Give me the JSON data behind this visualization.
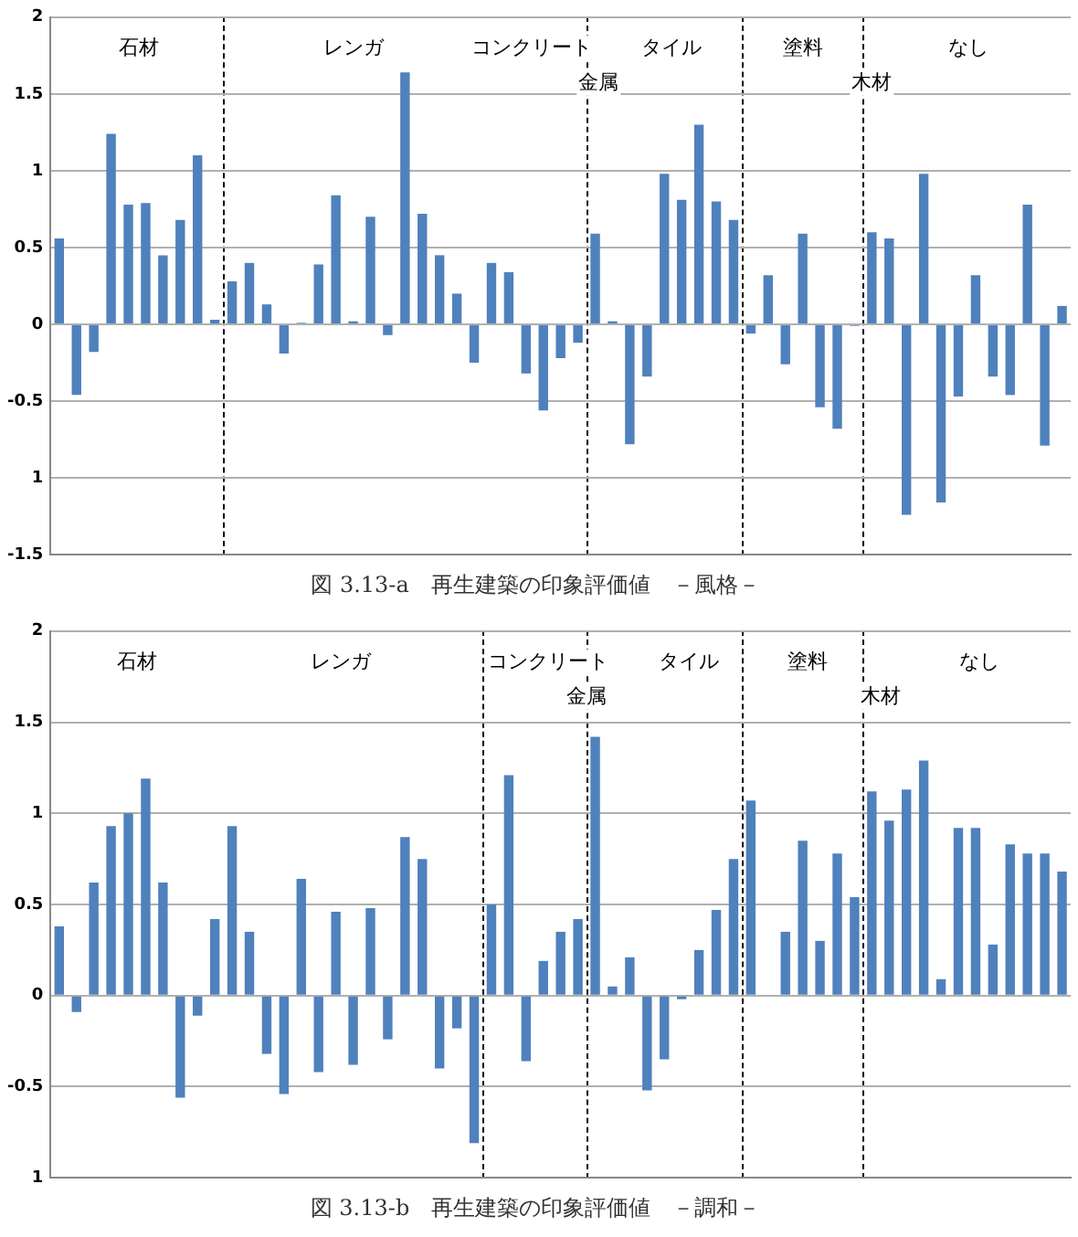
{
  "chart_data": [
    {
      "type": "bar",
      "title": "図 3.13-a　再生建築の印象評価値　－風格－",
      "categories": [
        null,
        null,
        null,
        null,
        null,
        null,
        null,
        null,
        null,
        null,
        null,
        null,
        null,
        null,
        null,
        null,
        null,
        null,
        null,
        null,
        null,
        null,
        null,
        null,
        null,
        null,
        null,
        null,
        null,
        null,
        null,
        null,
        null,
        null,
        null,
        null,
        null,
        null,
        null,
        null,
        null,
        null,
        null,
        null,
        null,
        null,
        null,
        null,
        null,
        null,
        null,
        null,
        null,
        null,
        null,
        null,
        null,
        null,
        null
      ],
      "values": [
        0.56,
        -0.46,
        -0.18,
        1.24,
        0.78,
        0.79,
        0.45,
        0.68,
        1.1,
        0.03,
        0.28,
        0.4,
        0.13,
        -0.19,
        0.01,
        0.39,
        0.84,
        0.02,
        0.7,
        -0.07,
        1.64,
        0.72,
        0.45,
        0.2,
        -0.25,
        0.4,
        0.34,
        -0.32,
        -0.56,
        -0.22,
        -0.12,
        0.59,
        0.02,
        -0.78,
        -0.34,
        0.98,
        0.81,
        1.3,
        0.8,
        0.68,
        -0.06,
        0.32,
        -0.26,
        0.59,
        -0.54,
        -0.68,
        -0.01,
        0.6,
        0.56,
        -1.24,
        0.98,
        -1.16,
        -0.47,
        0.32,
        -0.34,
        -0.46,
        0.78,
        -0.79,
        0.12
      ],
      "color": "#4f81bd",
      "ylim": [
        -1.5,
        2
      ],
      "yticks": [
        -1.5,
        {
          "value": -1,
          "label": "1"
        },
        -0.5,
        0,
        0.5,
        1,
        1.5,
        2
      ],
      "tick_labels": "y",
      "grid": "y",
      "annotations": [
        "石材",
        "レンガ",
        "コンクリート",
        "金属",
        "タイル",
        "塗料",
        "木材",
        "なし"
      ]
    },
    {
      "type": "bar",
      "title": "図 3.13-b　再生建築の印象評価値　－調和－",
      "categories": [
        null,
        null,
        null,
        null,
        null,
        null,
        null,
        null,
        null,
        null,
        null,
        null,
        null,
        null,
        null,
        null,
        null,
        null,
        null,
        null,
        null,
        null,
        null,
        null,
        null,
        null,
        null,
        null,
        null,
        null,
        null,
        null,
        null,
        null,
        null,
        null,
        null,
        null,
        null,
        null,
        null,
        null,
        null,
        null,
        null,
        null,
        null,
        null,
        null,
        null,
        null,
        null,
        null,
        null,
        null,
        null,
        null,
        null,
        null
      ],
      "values": [
        0.38,
        -0.09,
        0.62,
        0.93,
        1.0,
        1.19,
        0.62,
        -0.56,
        -0.11,
        0.42,
        0.93,
        0.35,
        -0.32,
        -0.54,
        0.64,
        -0.42,
        0.46,
        -0.38,
        0.48,
        -0.24,
        0.87,
        0.75,
        -0.4,
        -0.18,
        -0.81,
        0.5,
        1.21,
        -0.36,
        0.19,
        0.35,
        0.42,
        1.42,
        0.05,
        0.21,
        -0.52,
        -0.35,
        -0.02,
        0.25,
        0.47,
        0.75,
        1.07,
        null,
        0.35,
        0.85,
        0.3,
        0.78,
        0.54,
        1.12,
        0.96,
        1.13,
        1.29,
        0.09,
        0.92,
        0.92,
        0.28,
        0.83,
        0.78,
        0.78,
        0.68
      ],
      "color": "#4f81bd",
      "ylim": [
        -1,
        2
      ],
      "yticks": [
        {
          "value": -1,
          "label": "1"
        },
        -0.5,
        0,
        0.5,
        1,
        1.5,
        2
      ],
      "tick_labels": "y",
      "grid": "y",
      "annotations": [
        "石材",
        "レンガ",
        "コンクリート",
        "金属",
        "タイル",
        "塗料",
        "木材",
        "なし"
      ]
    }
  ]
}
